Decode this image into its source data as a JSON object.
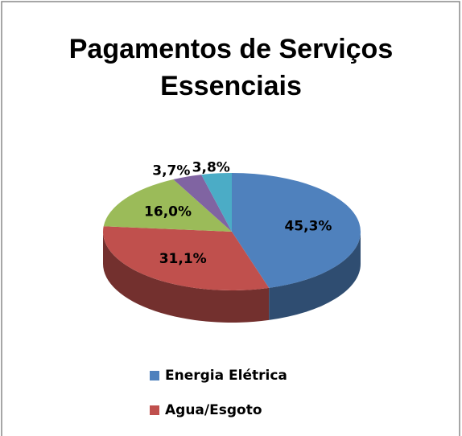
{
  "chart_data": {
    "type": "pie3d",
    "title": "Pagamentos de Serviços Essenciais",
    "categories": [
      "Energia Elétrica",
      "Agua/Esgoto",
      null,
      null,
      null
    ],
    "values": [
      45.3,
      31.1,
      16.0,
      3.7,
      3.8
    ],
    "value_labels": [
      "45,3%",
      "31,1%",
      "16,0%",
      "3,7%",
      "3,8%"
    ],
    "colors": [
      "#4f81bd",
      "#c0504d",
      "#9bbb59",
      "#8064a2",
      "#4bacc6"
    ],
    "legend": "bottom"
  }
}
